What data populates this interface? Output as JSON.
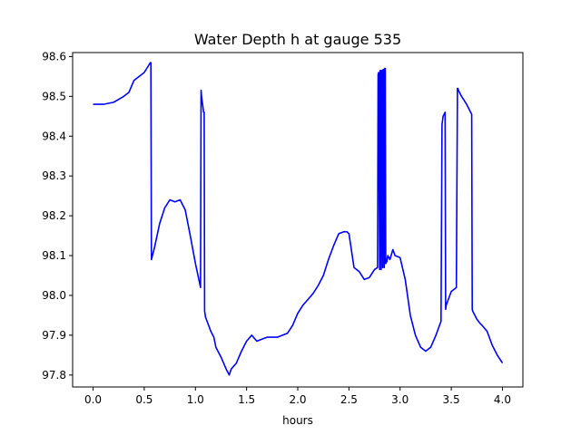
{
  "chart_data": {
    "type": "line",
    "title": "Water Depth h at gauge 535",
    "xlabel": "hours",
    "ylabel": "",
    "xlim": [
      -0.2,
      4.2
    ],
    "ylim": [
      97.77,
      98.61
    ],
    "xticks": [
      0.0,
      0.5,
      1.0,
      1.5,
      2.0,
      2.5,
      3.0,
      3.5,
      4.0
    ],
    "xtick_labels": [
      "0.0",
      "0.5",
      "1.0",
      "1.5",
      "2.0",
      "2.5",
      "3.0",
      "3.5",
      "4.0"
    ],
    "yticks": [
      97.8,
      97.9,
      98.0,
      98.1,
      98.2,
      98.3,
      98.4,
      98.5,
      98.6
    ],
    "ytick_labels": [
      "97.8",
      "97.9",
      "98.0",
      "98.1",
      "98.2",
      "98.3",
      "98.4",
      "98.5",
      "98.6"
    ],
    "grid": false,
    "legend": "none",
    "series": [
      {
        "color": "#0000ff",
        "x": [
          0.0,
          0.1,
          0.2,
          0.3,
          0.35,
          0.4,
          0.5,
          0.56,
          0.565,
          0.57,
          0.6,
          0.65,
          0.7,
          0.75,
          0.8,
          0.85,
          0.9,
          0.95,
          1.0,
          1.05,
          1.055,
          1.06,
          1.08,
          1.085,
          1.09,
          1.1,
          1.15,
          1.18,
          1.2,
          1.25,
          1.3,
          1.33,
          1.35,
          1.4,
          1.45,
          1.5,
          1.55,
          1.6,
          1.65,
          1.7,
          1.75,
          1.8,
          1.85,
          1.9,
          1.95,
          2.0,
          2.05,
          2.1,
          2.15,
          2.2,
          2.25,
          2.3,
          2.35,
          2.4,
          2.45,
          2.48,
          2.5,
          2.55,
          2.6,
          2.65,
          2.7,
          2.75,
          2.78,
          2.785,
          2.79,
          2.8,
          2.805,
          2.81,
          2.815,
          2.82,
          2.825,
          2.83,
          2.835,
          2.84,
          2.845,
          2.85,
          2.855,
          2.86,
          2.87,
          2.88,
          2.9,
          2.93,
          2.95,
          3.0,
          3.05,
          3.1,
          3.15,
          3.2,
          3.25,
          3.3,
          3.35,
          3.4,
          3.41,
          3.415,
          3.42,
          3.44,
          3.445,
          3.45,
          3.5,
          3.55,
          3.56,
          3.565,
          3.57,
          3.6,
          3.65,
          3.7,
          3.705,
          3.71,
          3.75,
          3.78,
          3.8,
          3.85,
          3.9,
          3.95,
          4.0
        ],
        "values": [
          98.48,
          98.48,
          98.485,
          98.5,
          98.51,
          98.54,
          98.56,
          98.585,
          98.585,
          98.09,
          98.12,
          98.18,
          98.22,
          98.24,
          98.235,
          98.24,
          98.215,
          98.15,
          98.08,
          98.02,
          98.515,
          98.5,
          98.46,
          98.46,
          97.96,
          97.945,
          97.91,
          97.895,
          97.87,
          97.845,
          97.815,
          97.8,
          97.815,
          97.83,
          97.86,
          97.885,
          97.9,
          97.885,
          97.89,
          97.895,
          97.895,
          97.895,
          97.9,
          97.905,
          97.925,
          97.955,
          97.975,
          97.99,
          98.005,
          98.025,
          98.05,
          98.09,
          98.125,
          98.155,
          98.16,
          98.16,
          98.155,
          98.07,
          98.06,
          98.04,
          98.045,
          98.065,
          98.07,
          98.555,
          98.56,
          98.065,
          98.565,
          98.565,
          98.065,
          98.565,
          98.565,
          98.07,
          98.568,
          98.568,
          98.07,
          98.57,
          98.57,
          98.08,
          98.085,
          98.1,
          98.09,
          98.115,
          98.1,
          98.095,
          98.04,
          97.95,
          97.9,
          97.87,
          97.86,
          97.87,
          97.9,
          97.935,
          98.43,
          98.44,
          98.45,
          98.46,
          97.965,
          97.975,
          98.01,
          98.02,
          98.52,
          98.52,
          98.515,
          98.5,
          98.48,
          98.455,
          97.965,
          97.96,
          97.94,
          97.93,
          97.925,
          97.91,
          97.875,
          97.85,
          97.83
        ]
      }
    ]
  }
}
